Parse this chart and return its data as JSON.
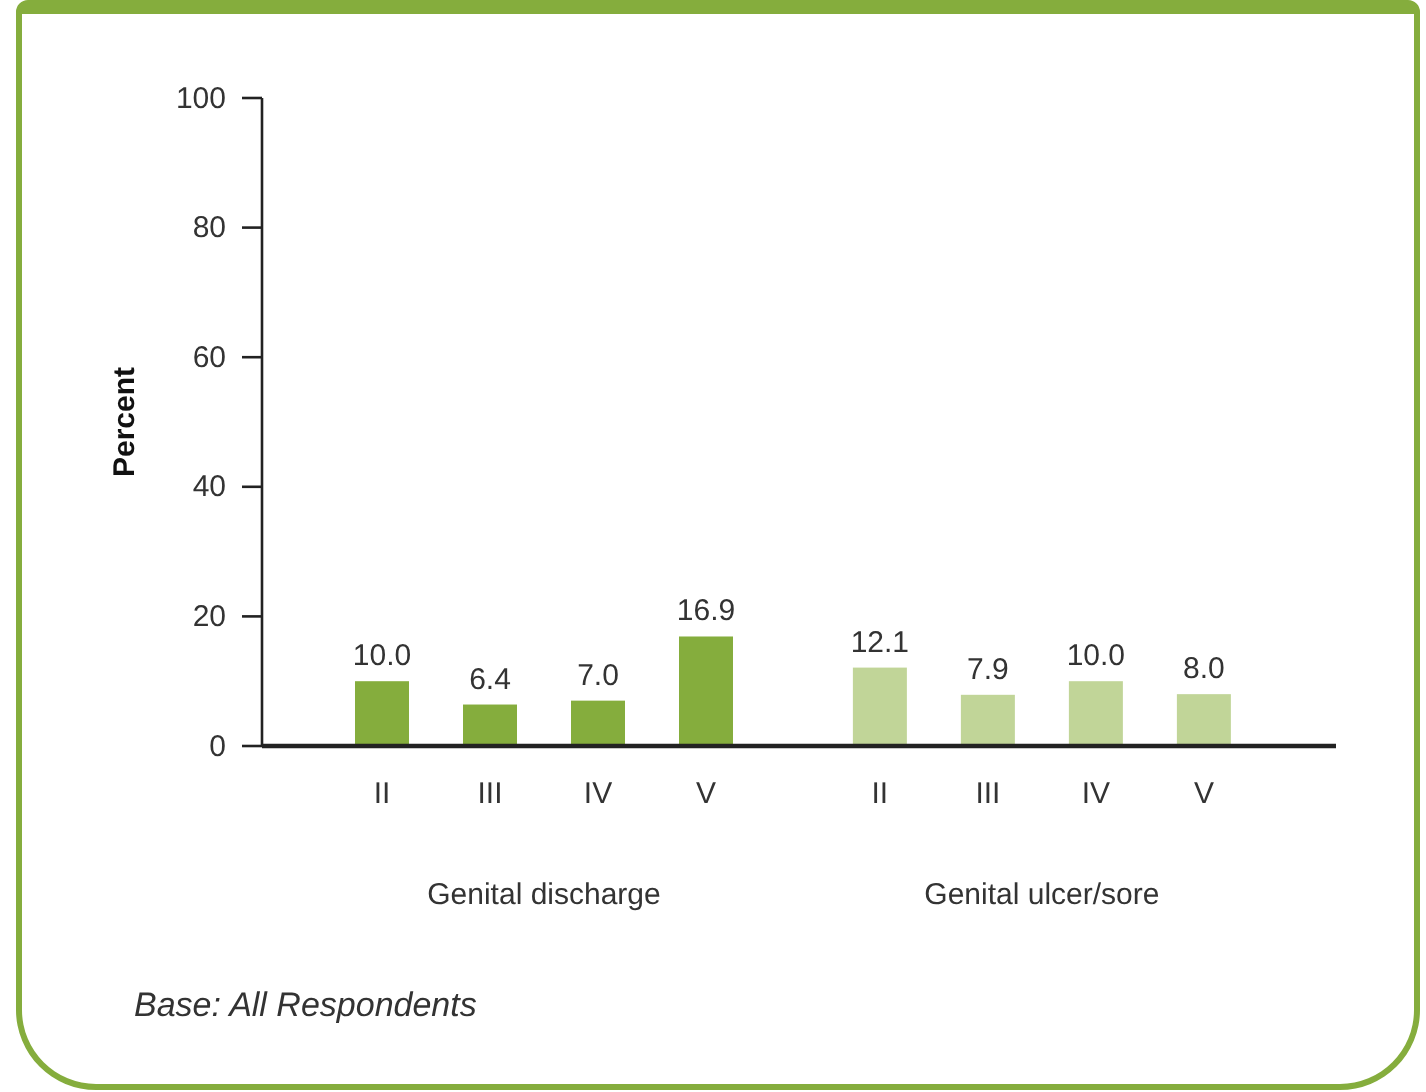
{
  "chart_data": {
    "type": "bar",
    "ylabel": "Percent",
    "categories": [
      "II",
      "III",
      "IV",
      "V",
      "II",
      "III",
      "IV",
      "V"
    ],
    "series": [
      {
        "color": "#85ad3d",
        "values": [
          10.0,
          6.4,
          7.0,
          16.9,
          null,
          null,
          null,
          null
        ],
        "value_labels": [
          "10.0",
          "6.4",
          "7.0",
          "16.9",
          null,
          null,
          null,
          null
        ]
      },
      {
        "color": "#c1d598",
        "values": [
          null,
          null,
          null,
          null,
          12.1,
          7.9,
          10.0,
          8.0
        ],
        "value_labels": [
          null,
          null,
          null,
          null,
          "12.1",
          "7.9",
          "10.0",
          "8.0"
        ]
      }
    ],
    "ylim": [
      0,
      100
    ],
    "yticks": [
      0,
      20,
      40,
      60,
      80,
      100
    ],
    "annotations": [
      "Genital discharge",
      "Genital ulcer/sore",
      "Base: All Respondents"
    ]
  }
}
